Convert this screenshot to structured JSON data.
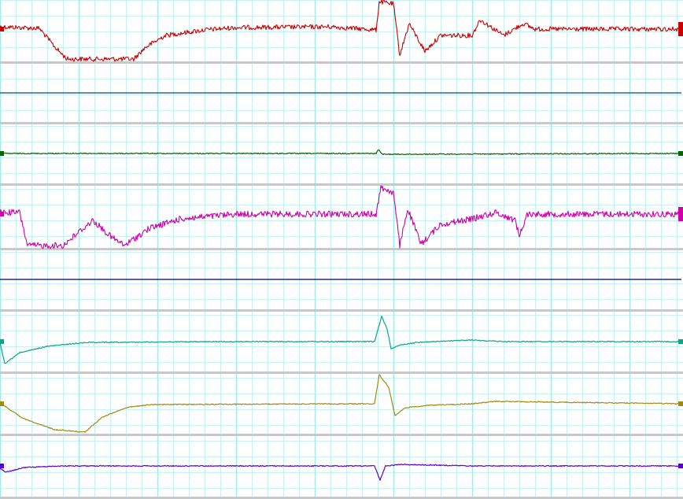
{
  "chart_data": {
    "type": "line",
    "grid": true,
    "x_range": [
      0,
      868
    ],
    "colors": {
      "background": "#ffffff",
      "grid": "#9fe9ef",
      "separator": "#c8c8c8",
      "trace1": "#cc0000",
      "trace2": "#1d3f7a",
      "trace3": "#006400",
      "trace4": "#d000a8",
      "trace5": "#00005a",
      "trace6": "#10a484",
      "trace7": "#a08a10",
      "trace8": "#5a00d0"
    },
    "series": [
      {
        "color": "trace1",
        "noise": 3,
        "end_marker": true,
        "points": [
          [
            0,
            34
          ],
          [
            50,
            36
          ],
          [
            70,
            60
          ],
          [
            85,
            75
          ],
          [
            170,
            75
          ],
          [
            185,
            60
          ],
          [
            210,
            45
          ],
          [
            260,
            38
          ],
          [
            300,
            35
          ],
          [
            420,
            34
          ],
          [
            478,
            38
          ],
          [
            482,
            2
          ],
          [
            500,
            5
          ],
          [
            508,
            70
          ],
          [
            520,
            30
          ],
          [
            540,
            65
          ],
          [
            560,
            45
          ],
          [
            600,
            45
          ],
          [
            610,
            25
          ],
          [
            640,
            45
          ],
          [
            665,
            30
          ],
          [
            680,
            37
          ],
          [
            866,
            37
          ]
        ]
      },
      {
        "color": "trace2",
        "noise": 0,
        "end_marker": false,
        "points": [
          [
            0,
            118
          ],
          [
            866,
            118
          ]
        ]
      },
      {
        "color": "trace3",
        "noise": 0.6,
        "end_marker": true,
        "points": [
          [
            0,
            195
          ],
          [
            478,
            195
          ],
          [
            481,
            190
          ],
          [
            486,
            196
          ],
          [
            866,
            195
          ]
        ]
      },
      {
        "color": "trace4",
        "noise": 4,
        "end_marker": true,
        "points": [
          [
            0,
            270
          ],
          [
            25,
            270
          ],
          [
            35,
            312
          ],
          [
            80,
            312
          ],
          [
            100,
            295
          ],
          [
            118,
            280
          ],
          [
            140,
            300
          ],
          [
            158,
            312
          ],
          [
            190,
            290
          ],
          [
            230,
            278
          ],
          [
            300,
            272
          ],
          [
            478,
            272
          ],
          [
            484,
            238
          ],
          [
            500,
            245
          ],
          [
            508,
            312
          ],
          [
            518,
            265
          ],
          [
            535,
            310
          ],
          [
            560,
            285
          ],
          [
            600,
            278
          ],
          [
            630,
            270
          ],
          [
            655,
            280
          ],
          [
            660,
            300
          ],
          [
            670,
            272
          ],
          [
            866,
            272
          ]
        ]
      },
      {
        "color": "trace5",
        "noise": 0,
        "end_marker": false,
        "points": [
          [
            0,
            355
          ],
          [
            866,
            355
          ]
        ]
      },
      {
        "color": "trace6",
        "noise": 0.6,
        "end_marker": true,
        "points": [
          [
            0,
            435
          ],
          [
            6,
            462
          ],
          [
            25,
            448
          ],
          [
            60,
            440
          ],
          [
            110,
            435
          ],
          [
            300,
            434
          ],
          [
            476,
            434
          ],
          [
            485,
            402
          ],
          [
            492,
            418
          ],
          [
            497,
            443
          ],
          [
            510,
            438
          ],
          [
            530,
            435
          ],
          [
            600,
            432
          ],
          [
            640,
            434
          ],
          [
            866,
            434
          ]
        ]
      },
      {
        "color": "trace7",
        "noise": 0.6,
        "end_marker": true,
        "points": [
          [
            0,
            512
          ],
          [
            30,
            532
          ],
          [
            70,
            546
          ],
          [
            108,
            549
          ],
          [
            130,
            530
          ],
          [
            160,
            518
          ],
          [
            190,
            514
          ],
          [
            476,
            513
          ],
          [
            482,
            476
          ],
          [
            494,
            492
          ],
          [
            502,
            528
          ],
          [
            515,
            518
          ],
          [
            545,
            515
          ],
          [
            600,
            513
          ],
          [
            630,
            510
          ],
          [
            866,
            513
          ]
        ]
      },
      {
        "color": "trace8",
        "noise": 0.6,
        "end_marker": true,
        "points": [
          [
            0,
            595
          ],
          [
            8,
            600
          ],
          [
            30,
            594
          ],
          [
            80,
            592
          ],
          [
            476,
            592
          ],
          [
            483,
            610
          ],
          [
            490,
            592
          ],
          [
            510,
            590
          ],
          [
            600,
            592
          ],
          [
            866,
            592
          ]
        ]
      }
    ]
  }
}
